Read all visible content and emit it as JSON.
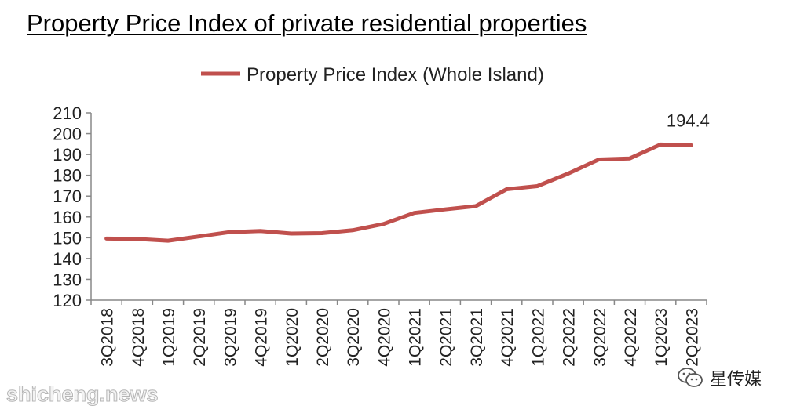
{
  "page_title": "Property Price Index of private residential properties",
  "chart_data": {
    "type": "line",
    "categories": [
      "3Q2018",
      "4Q2018",
      "1Q2019",
      "2Q2019",
      "3Q2019",
      "4Q2019",
      "1Q2020",
      "2Q2020",
      "3Q2020",
      "4Q2020",
      "1Q2021",
      "2Q2021",
      "3Q2021",
      "4Q2021",
      "1Q2022",
      "2Q2022",
      "3Q2022",
      "4Q2022",
      "1Q2023",
      "2Q2023"
    ],
    "series": [
      {
        "name": "Property Price Index (Whole Island)",
        "values": [
          149.6,
          149.4,
          148.6,
          150.6,
          152.7,
          153.2,
          152.0,
          152.2,
          153.6,
          156.6,
          161.9,
          163.6,
          165.2,
          173.3,
          174.8,
          180.8,
          187.6,
          188.1,
          194.8,
          194.4
        ],
        "color": "#c0504d"
      }
    ],
    "yticks": [
      120,
      130,
      140,
      150,
      160,
      170,
      180,
      190,
      200,
      210
    ],
    "ylim": [
      120,
      210
    ],
    "annotation": {
      "text": "194.4",
      "category": "2Q2023"
    },
    "legend_position": "top",
    "grid": false
  },
  "watermark": "shicheng.news",
  "brand": {
    "name": "星传媒",
    "icon": "wechat-icon"
  }
}
